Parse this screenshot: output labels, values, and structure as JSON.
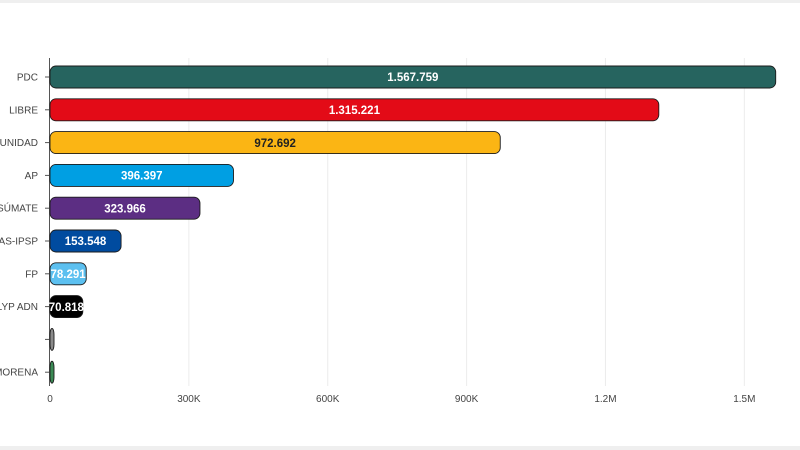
{
  "chart_data": {
    "type": "bar",
    "orientation": "horizontal",
    "categories": [
      "PDC",
      "LIBRE",
      "UNIDAD",
      "AP",
      "B SÚMATE",
      "MAS-IPSP",
      "FP",
      "LYP ADN",
      "",
      "MORENA"
    ],
    "values": [
      1567759,
      1315221,
      972692,
      396397,
      323966,
      153548,
      78291,
      70818,
      0,
      0
    ],
    "value_labels": [
      "1.567.759",
      "1.315.221",
      "972.692",
      "396.397",
      "323.966",
      "153.548",
      "78.291",
      "70.818",
      "",
      ""
    ],
    "colors": [
      "#26645f",
      "#e30b17",
      "#fbb514",
      "#009fe3",
      "#5c2e83",
      "#004b9f",
      "#5cc0f0",
      "#000000",
      "#8a8a8a",
      "#3b8a55"
    ],
    "label_colors": [
      "#ffffff",
      "#ffffff",
      "#222222",
      "#ffffff",
      "#ffffff",
      "#ffffff",
      "#ffffff",
      "#ffffff",
      "#ffffff",
      "#ffffff"
    ],
    "x_ticks": [
      0,
      300000,
      600000,
      900000,
      1200000,
      1500000
    ],
    "x_tick_labels": [
      "0",
      "300K",
      "600K",
      "900K",
      "1.2M",
      "1.5M"
    ],
    "xlim": [
      0,
      1590000
    ],
    "grid": true,
    "title": "",
    "xlabel": "",
    "ylabel": ""
  }
}
